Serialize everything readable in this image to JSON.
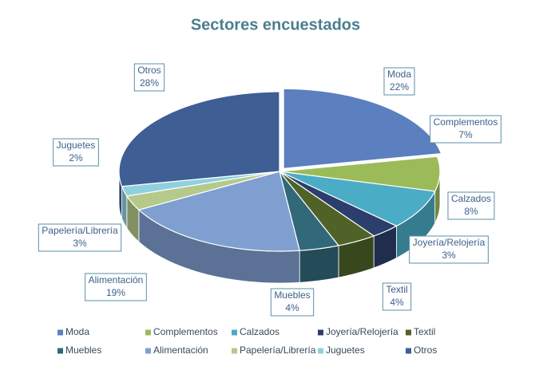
{
  "chart_data": {
    "type": "pie",
    "title": "Sectores encuestados",
    "categories": [
      "Moda",
      "Complementos",
      "Calzados",
      "Joyería/Relojería",
      "Textil",
      "Muebles",
      "Alimentación",
      "Papelería/Librería",
      "Juguetes",
      "Otros"
    ],
    "values": [
      22,
      7,
      8,
      3,
      4,
      4,
      19,
      3,
      2,
      28
    ],
    "value_labels": [
      "22%",
      "7%",
      "8%",
      "3%",
      "4%",
      "4%",
      "19%",
      "3%",
      "2%",
      "28%"
    ],
    "colors": [
      "#5b7fbf",
      "#9bbb59",
      "#4bacc6",
      "#2c3e6b",
      "#4f6228",
      "#31687a",
      "#7f9fd0",
      "#b5c98b",
      "#8fd0e0",
      "#3e5e94"
    ],
    "legend": "bottom"
  }
}
